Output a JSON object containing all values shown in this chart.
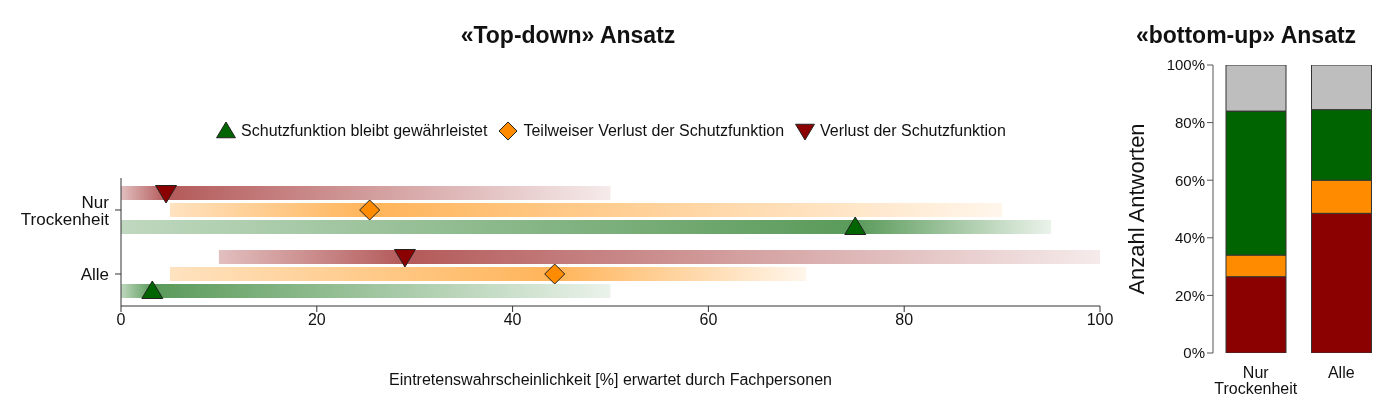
{
  "chart_data": [
    {
      "type": "bar",
      "orientation": "horizontal",
      "title": "«Top-down» Ansatz",
      "xlabel": "Eintretenswahrscheinlichkeit [%] erwartet durch Fachpersonen",
      "categories": [
        "Nur Trockenheit",
        "Alle"
      ],
      "xlim": [
        0,
        100
      ],
      "xticks": [
        0,
        20,
        40,
        60,
        80,
        100
      ],
      "legend": "top",
      "series": [
        {
          "color": "#8b0000",
          "base": [
            0,
            10
          ],
          "values": [
            50,
            90
          ]
        },
        {
          "color": "#ff8c00",
          "base": [
            5,
            5
          ],
          "values": [
            85,
            65
          ]
        },
        {
          "color": "#006400",
          "base": [
            0,
            0
          ],
          "values": [
            95,
            50
          ]
        },
        {
          "type": "scatter",
          "name": "Schutzfunktion bleibt gewährleistet",
          "color": "#006400",
          "marker": "triangle",
          "values": [
            75,
            3.2
          ]
        },
        {
          "type": "scatter",
          "name": "Teilweiser Verlust der Schutzfunktion",
          "color": "#ff8c00",
          "marker": "diamond",
          "values": [
            25.4,
            44.3
          ]
        },
        {
          "type": "scatter",
          "name": "Verlust der Schutzfunktion",
          "color": "#8b0000",
          "marker": "triangle-down",
          "values": [
            4.6,
            29
          ]
        }
      ]
    },
    {
      "type": "bar",
      "stacked": true,
      "title": "«bottom-up» Ansatz",
      "ylabel": "Anzahl Antworten",
      "categories": [
        "Nur Trockenheit",
        "Alle"
      ],
      "ylim": [
        0,
        100
      ],
      "yticks": [
        {
          "value": 0,
          "label": "0%"
        },
        {
          "value": 20,
          "label": "20%"
        },
        {
          "value": 40,
          "label": "40%"
        },
        {
          "value": 60,
          "label": "60%"
        },
        {
          "value": 80,
          "label": "80%"
        },
        {
          "value": 100,
          "label": "100%"
        }
      ],
      "series": [
        {
          "color": "#8b0000",
          "values": [
            26.5,
            48.5
          ]
        },
        {
          "color": "#ff8c00",
          "values": [
            7.5,
            11.5
          ]
        },
        {
          "color": "#006400",
          "values": [
            50,
            24.5
          ]
        },
        {
          "color": "#bebebe",
          "values": [
            16,
            15.5
          ]
        }
      ]
    }
  ]
}
